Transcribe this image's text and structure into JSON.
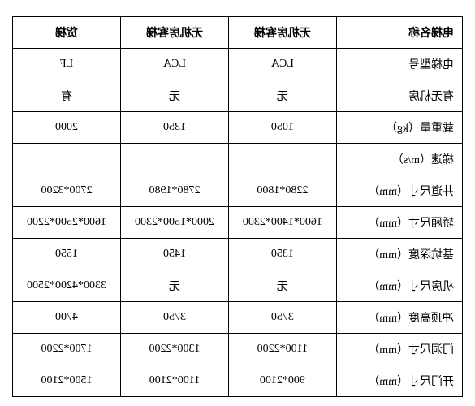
{
  "table": {
    "border_color": "#000000",
    "background_color": "#ffffff",
    "font_family": "SimSun",
    "header_fontsize": 14,
    "cell_fontsize": 14,
    "columns": [
      {
        "label": "电梯名称",
        "width": "28%",
        "align": "left"
      },
      {
        "label": "无机房客梯",
        "width": "24%",
        "align": "center"
      },
      {
        "label": "无机房客梯",
        "width": "24%",
        "align": "center"
      },
      {
        "label": "货梯",
        "width": "24%",
        "align": "center"
      }
    ],
    "rows": [
      {
        "label": "电梯型号",
        "cells": [
          "LCA",
          "LCA",
          "LF"
        ]
      },
      {
        "label": "有无机房",
        "cells": [
          "无",
          "无",
          "有"
        ]
      },
      {
        "label": "载重量（kg）",
        "cells": [
          "1050",
          "1350",
          "2000"
        ]
      },
      {
        "label": "梯速（m/s）",
        "cells": [
          "",
          "",
          ""
        ]
      },
      {
        "label": "井道尺寸（mm）",
        "cells": [
          "2280*1800",
          "2780*1980",
          "2700*3200"
        ]
      },
      {
        "label": "轿厢尺寸（mm）",
        "cells": [
          "1600*1400*2300",
          "2000*1500*2300",
          "1600*2500*2200"
        ]
      },
      {
        "label": "基坑深度（mm）",
        "cells": [
          "1350",
          "1450",
          "1550"
        ]
      },
      {
        "label": "机房尺寸（mm）",
        "cells": [
          "无",
          "无",
          "3300*4200*2500"
        ]
      },
      {
        "label": "冲顶高度（mm）",
        "cells": [
          "3750",
          "3750",
          "4700"
        ]
      },
      {
        "label": "门洞尺寸（mm）",
        "cells": [
          "1100*2200",
          "1300*2200",
          "1700*2200"
        ]
      },
      {
        "label": "开门尺寸（mm）",
        "cells": [
          "900*2100",
          "1100*2100",
          "1500*2100"
        ]
      }
    ]
  }
}
